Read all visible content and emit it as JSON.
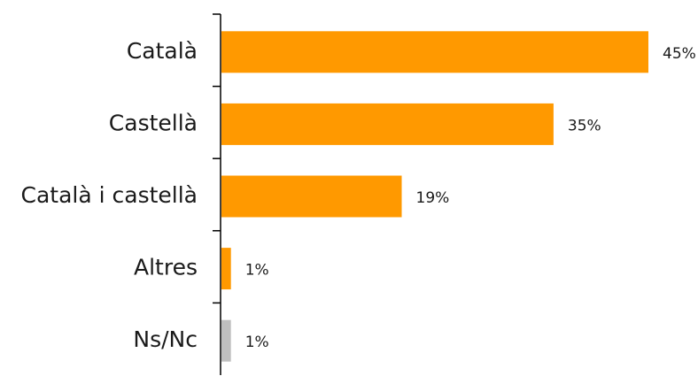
{
  "chart_data": {
    "type": "bar",
    "orientation": "horizontal",
    "categories": [
      "Català",
      "Castellà",
      "Català i castellà",
      "Altres",
      "Ns/Nc"
    ],
    "values": [
      45,
      35,
      19,
      1,
      1
    ],
    "value_labels": [
      "45%",
      "35%",
      "19%",
      "1%",
      "1%"
    ],
    "bar_colors": [
      "#FF9900",
      "#FF9900",
      "#FF9900",
      "#FF9900",
      "#BFBFBF"
    ],
    "title": "",
    "xlabel": "",
    "ylabel": "",
    "xlim": [
      0,
      50
    ],
    "grid": false,
    "legend": "none"
  }
}
